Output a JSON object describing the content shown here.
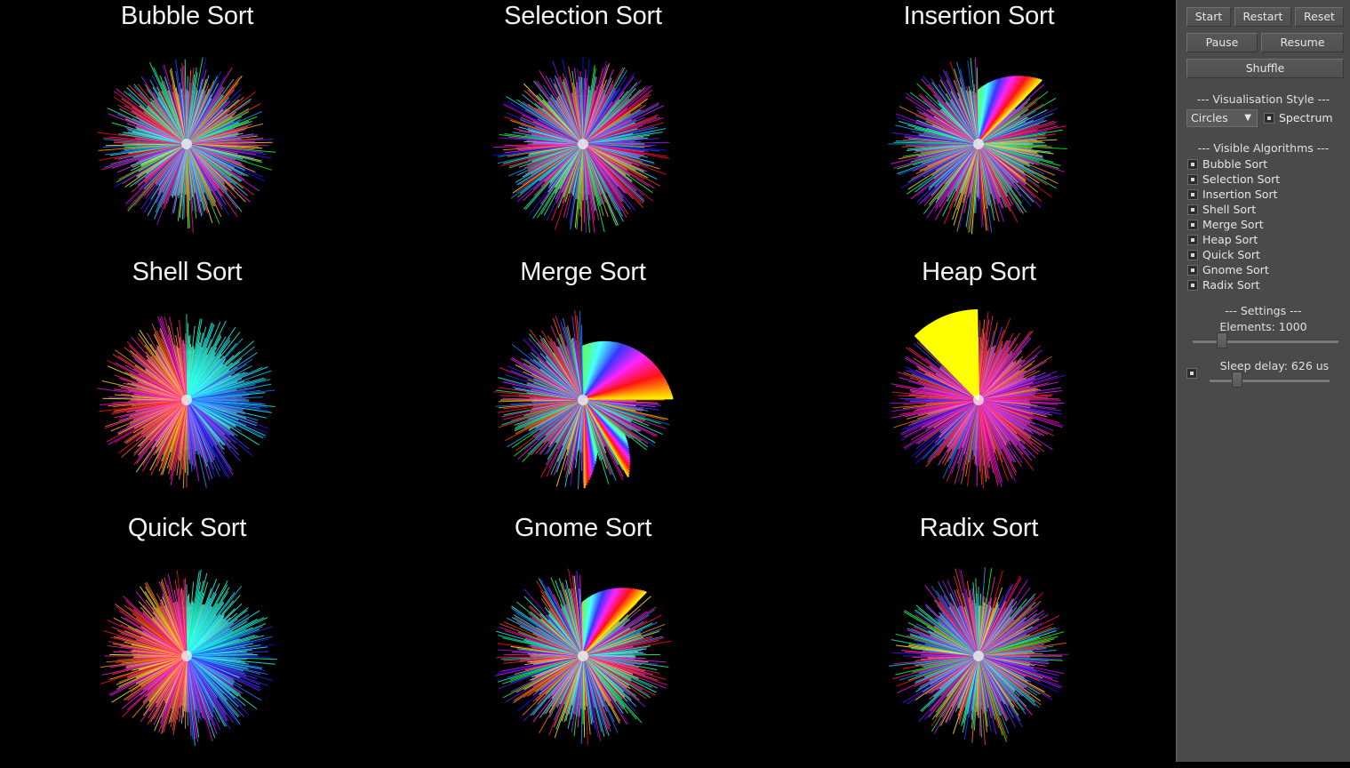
{
  "visualizations": [
    {
      "title": "Bubble Sort",
      "state": "random"
    },
    {
      "title": "Selection Sort",
      "state": "random"
    },
    {
      "title": "Insertion Sort",
      "state": "insertion"
    },
    {
      "title": "Shell Sort",
      "state": "shell"
    },
    {
      "title": "Merge Sort",
      "state": "merge"
    },
    {
      "title": "Heap Sort",
      "state": "heap"
    },
    {
      "title": "Quick Sort",
      "state": "quick"
    },
    {
      "title": "Gnome Sort",
      "state": "gnome"
    },
    {
      "title": "Radix Sort",
      "state": "random"
    }
  ],
  "panel": {
    "buttons": {
      "start": "Start",
      "restart": "Restart",
      "reset": "Reset",
      "pause": "Pause",
      "resume": "Resume",
      "shuffle": "Shuffle"
    },
    "vis_style": {
      "title": "--- Visualisation Style ---",
      "style_value": "Circles",
      "dropdown_arrow": "▼",
      "spectrum_label": "Spectrum"
    },
    "visible_algorithms": {
      "title": "--- Visible Algorithms ---",
      "items": [
        "Bubble Sort",
        "Selection Sort",
        "Insertion Sort",
        "Shell Sort",
        "Merge Sort",
        "Heap Sort",
        "Quick Sort",
        "Gnome Sort",
        "Radix Sort"
      ]
    },
    "settings": {
      "title": "--- Settings ---",
      "elements_label": "Elements: 1000",
      "elements_value": 1000,
      "sleep_label": "Sleep delay: 626 us",
      "sleep_value": 626
    }
  },
  "colors": {
    "background": "#000000",
    "panel": "#4a4a4a",
    "text": "#e8e8e8"
  }
}
